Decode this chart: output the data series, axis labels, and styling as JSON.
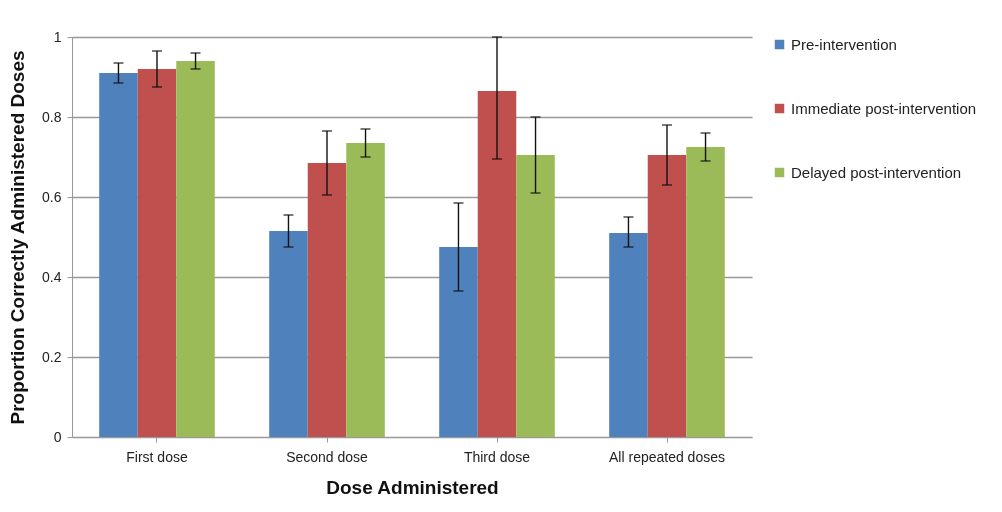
{
  "chart_data": {
    "type": "bar",
    "xlabel": "Dose Administered",
    "ylabel": "Proportion Correctly Administered Doses",
    "categories": [
      "First dose",
      "Second dose",
      "Third dose",
      "All repeated doses"
    ],
    "series": [
      {
        "name": "Pre-intervention",
        "color": "#4f81bd",
        "values": [
          0.91,
          0.515,
          0.475,
          0.51
        ],
        "errors": [
          [
            0.885,
            0.935
          ],
          [
            0.475,
            0.555
          ],
          [
            0.365,
            0.585
          ],
          [
            0.475,
            0.55
          ]
        ]
      },
      {
        "name": "Immediate post-intervention",
        "color": "#c0504d",
        "values": [
          0.92,
          0.685,
          0.865,
          0.705
        ],
        "errors": [
          [
            0.875,
            0.965
          ],
          [
            0.605,
            0.765
          ],
          [
            0.695,
            1.0
          ],
          [
            0.63,
            0.78
          ]
        ]
      },
      {
        "name": "Delayed post-intervention",
        "color": "#9bbb59",
        "values": [
          0.94,
          0.735,
          0.705,
          0.725
        ],
        "errors": [
          [
            0.92,
            0.96
          ],
          [
            0.7,
            0.77
          ],
          [
            0.61,
            0.8
          ],
          [
            0.69,
            0.76
          ]
        ]
      }
    ],
    "ylim": [
      0,
      1
    ],
    "yticks": [
      0,
      0.2,
      0.4,
      0.6,
      0.8,
      1
    ],
    "grid": "y",
    "legend": "right"
  }
}
